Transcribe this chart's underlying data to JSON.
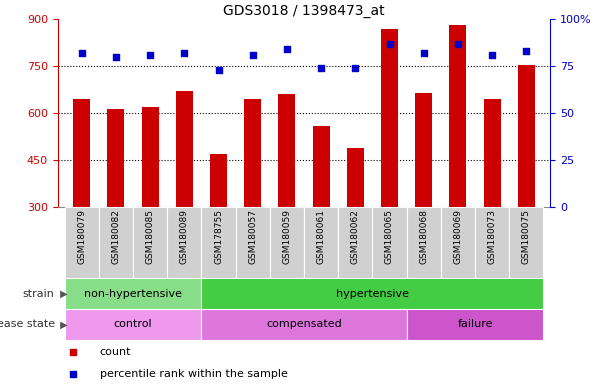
{
  "title": "GDS3018 / 1398473_at",
  "samples": [
    "GSM180079",
    "GSM180082",
    "GSM180085",
    "GSM180089",
    "GSM178755",
    "GSM180057",
    "GSM180059",
    "GSM180061",
    "GSM180062",
    "GSM180065",
    "GSM180068",
    "GSM180069",
    "GSM180073",
    "GSM180075"
  ],
  "counts": [
    645,
    615,
    620,
    670,
    470,
    645,
    660,
    560,
    490,
    870,
    665,
    880,
    645,
    755
  ],
  "percentiles": [
    82,
    80,
    81,
    82,
    73,
    81,
    84,
    74,
    74,
    87,
    82,
    87,
    81,
    83
  ],
  "ylim_left": [
    300,
    900
  ],
  "ylim_right": [
    0,
    100
  ],
  "yticks_left": [
    300,
    450,
    600,
    750,
    900
  ],
  "yticks_right": [
    0,
    25,
    50,
    75,
    100
  ],
  "bar_color": "#cc0000",
  "dot_color": "#0000cc",
  "strain_groups": [
    {
      "label": "non-hypertensive",
      "start": 0,
      "end": 4,
      "color": "#88dd88"
    },
    {
      "label": "hypertensive",
      "start": 4,
      "end": 14,
      "color": "#44cc44"
    }
  ],
  "disease_groups": [
    {
      "label": "control",
      "start": 0,
      "end": 4,
      "color": "#ee99ee"
    },
    {
      "label": "compensated",
      "start": 4,
      "end": 10,
      "color": "#dd77dd"
    },
    {
      "label": "failure",
      "start": 10,
      "end": 14,
      "color": "#cc55cc"
    }
  ],
  "legend_count_label": "count",
  "legend_pct_label": "percentile rank within the sample",
  "strain_label": "strain",
  "disease_label": "disease state",
  "tick_color_left": "#cc0000",
  "tick_color_right": "#0000cc",
  "xtick_bg_color": "#d0d0d0",
  "hgrid_vals": [
    450,
    600,
    750
  ]
}
